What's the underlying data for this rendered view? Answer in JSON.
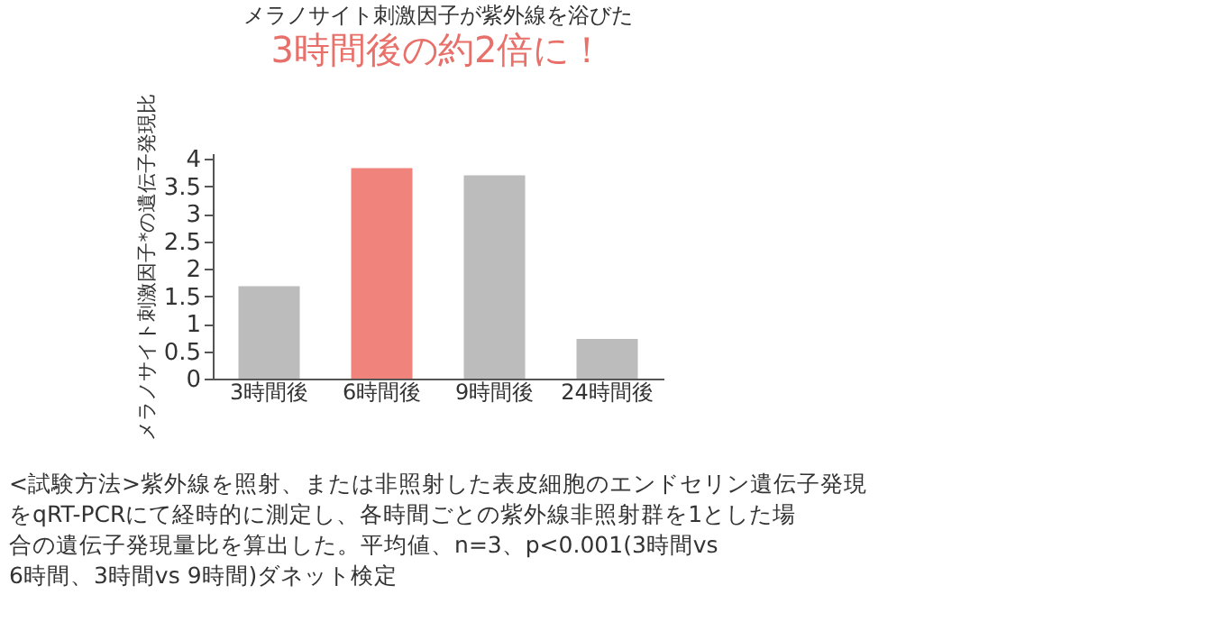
{
  "chart_data": {
    "type": "bar",
    "title": "メラノサイト刺激因子が紫外線を浴びた",
    "subtitle": "3時間後の約2倍に！",
    "ylabel": "メラノサイト刺激因子*の遺伝子発現比",
    "categories": [
      "3時間後",
      "6時間後",
      "9時間後",
      "24時間後"
    ],
    "values": [
      1.68,
      3.83,
      3.7,
      0.72
    ],
    "colors": [
      "#bcbcbc",
      "#f0837b",
      "#bcbcbc",
      "#bcbcbc"
    ],
    "ylim": [
      0,
      4.1
    ],
    "yticks": [
      0,
      0.5,
      1,
      1.5,
      2,
      2.5,
      3,
      3.5,
      4
    ],
    "grid": false,
    "annotations": [
      "<試験方法>紫外線を照射、または非照射した表皮細胞のエンドセリン遺伝子発現をqRT-PCRにて経時的に測定し、各時間ごとの紫外線非照射群を1とした場合の遺伝子発現量比を算出した。平均値、n=3、p<0.001(3時間vs 6時間、3時間vs 9時間)ダネット検定"
    ]
  }
}
